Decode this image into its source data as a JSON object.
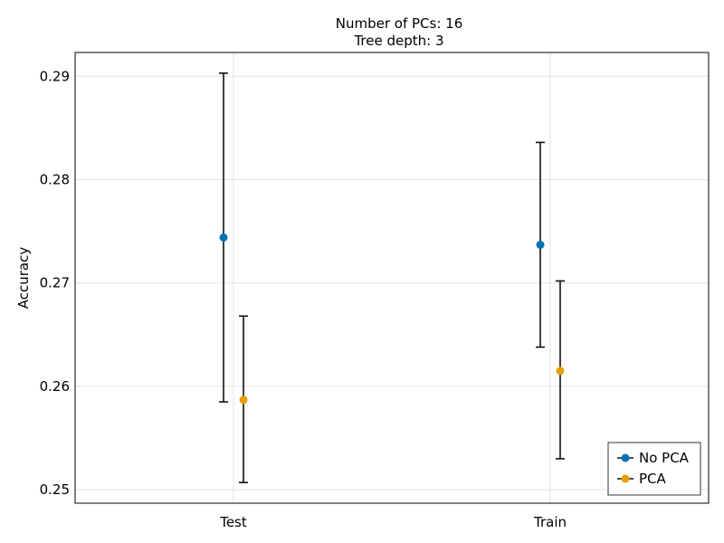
{
  "chart_data": {
    "type": "scatter",
    "title": "Number of PCs: 16",
    "subtitle": "Tree depth: 3",
    "xlabel": "",
    "ylabel": "Accuracy",
    "categories": [
      "Test",
      "Train"
    ],
    "ylim": [
      0.2487,
      0.2923
    ],
    "yticks": [
      0.25,
      0.26,
      0.27,
      0.28,
      0.29
    ],
    "ytick_labels": [
      "0.25",
      "0.26",
      "0.27",
      "0.28",
      "0.29"
    ],
    "grid": true,
    "legend_position": "bottom-right",
    "series": [
      {
        "name": "No PCA",
        "color": "#0072b2",
        "values": [
          0.2744,
          0.2737
        ],
        "lower": [
          0.2585,
          0.2638
        ],
        "upper": [
          0.2903,
          0.2836
        ]
      },
      {
        "name": "PCA",
        "color": "#e69f00",
        "values": [
          0.2587,
          0.2615
        ],
        "lower": [
          0.2507,
          0.253
        ],
        "upper": [
          0.2668,
          0.2702
        ]
      }
    ]
  }
}
